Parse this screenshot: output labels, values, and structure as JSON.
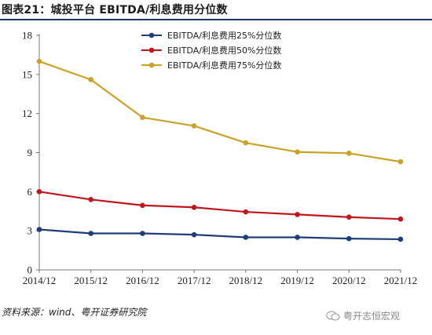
{
  "figure_title": "图表21：城投平台 EBITDA/利息费用分位数",
  "source_note": "资料来源：wind、粤开证券研究院",
  "watermark": "粤开志恒宏观",
  "chart_data": {
    "type": "line",
    "title": "图表21：城投平台 EBITDA/利息费用分位数",
    "xlabel": "",
    "ylabel": "",
    "categories": [
      "2014/12",
      "2015/12",
      "2016/12",
      "2017/12",
      "2018/12",
      "2019/12",
      "2020/12",
      "2021/12"
    ],
    "yticks": [
      0,
      3,
      6,
      9,
      12,
      15,
      18
    ],
    "ylim": [
      0,
      18
    ],
    "grid": false,
    "legend_position": "top-center",
    "series": [
      {
        "name": "EBITDA/利息费用25%分位数",
        "color": "#1f3d7a",
        "values": [
          3.1,
          2.8,
          2.8,
          2.7,
          2.5,
          2.5,
          2.4,
          2.35
        ]
      },
      {
        "name": "EBITDA/利息费用50%分位数",
        "color": "#c0171c",
        "values": [
          6.0,
          5.4,
          4.95,
          4.8,
          4.45,
          4.25,
          4.05,
          3.9
        ]
      },
      {
        "name": "EBITDA/利息费用75%分位数",
        "color": "#c9a227",
        "values": [
          16.0,
          14.6,
          11.7,
          11.05,
          9.75,
          9.05,
          8.95,
          8.3
        ]
      }
    ]
  }
}
